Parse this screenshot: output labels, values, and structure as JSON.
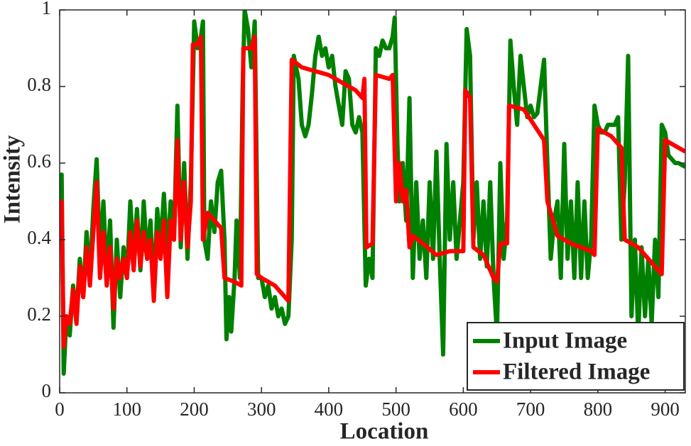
{
  "chart_data": {
    "type": "line",
    "xlabel": "Location",
    "ylabel": "Intensity",
    "xlim": [
      0,
      930
    ],
    "xticks": [
      0,
      100,
      200,
      300,
      400,
      500,
      600,
      700,
      800,
      900
    ],
    "ylim": [
      0,
      1
    ],
    "yticks": [
      0,
      0.2,
      0.4,
      0.6,
      0.8,
      1
    ],
    "legend": "lower right",
    "series": [
      {
        "name": "Input Image",
        "color": "#008000",
        "x": [
          0,
          3,
          6,
          10,
          15,
          20,
          25,
          30,
          35,
          40,
          45,
          50,
          55,
          60,
          65,
          70,
          75,
          80,
          85,
          90,
          95,
          100,
          105,
          110,
          115,
          120,
          125,
          130,
          135,
          140,
          145,
          150,
          155,
          160,
          165,
          170,
          175,
          180,
          185,
          190,
          195,
          200,
          205,
          210,
          213,
          215,
          220,
          225,
          230,
          235,
          240,
          245,
          248,
          252,
          255,
          260,
          263,
          268,
          272,
          275,
          280,
          285,
          290,
          295,
          300,
          305,
          310,
          315,
          320,
          325,
          330,
          335,
          340,
          345,
          348,
          355,
          360,
          365,
          370,
          375,
          380,
          385,
          390,
          395,
          400,
          405,
          410,
          415,
          420,
          425,
          430,
          435,
          440,
          445,
          450,
          455,
          460,
          465,
          470,
          475,
          480,
          485,
          490,
          495,
          498,
          502,
          505,
          510,
          515,
          520,
          525,
          530,
          535,
          540,
          545,
          550,
          555,
          560,
          565,
          570,
          575,
          580,
          585,
          590,
          595,
          600,
          605,
          610,
          615,
          620,
          625,
          630,
          635,
          640,
          645,
          650,
          655,
          660,
          665,
          670,
          675,
          680,
          685,
          690,
          695,
          700,
          705,
          710,
          715,
          720,
          725,
          730,
          735,
          740,
          745,
          750,
          755,
          760,
          765,
          770,
          775,
          780,
          785,
          790,
          795,
          800,
          805,
          810,
          815,
          820,
          825,
          830,
          835,
          840,
          845,
          850,
          855,
          860,
          865,
          870,
          875,
          880,
          885,
          890,
          895,
          900,
          905,
          910,
          915,
          920,
          930
        ],
        "values": [
          0.5,
          0.57,
          0.05,
          0.2,
          0.15,
          0.28,
          0.2,
          0.35,
          0.25,
          0.42,
          0.3,
          0.48,
          0.61,
          0.35,
          0.5,
          0.3,
          0.45,
          0.17,
          0.4,
          0.25,
          0.38,
          0.3,
          0.5,
          0.35,
          0.48,
          0.32,
          0.5,
          0.35,
          0.45,
          0.26,
          0.48,
          0.38,
          0.52,
          0.35,
          0.5,
          0.4,
          0.75,
          0.38,
          0.6,
          0.35,
          0.55,
          0.97,
          0.9,
          0.93,
          0.97,
          0.4,
          0.35,
          0.5,
          0.42,
          0.55,
          0.58,
          0.4,
          0.14,
          0.25,
          0.16,
          0.3,
          0.45,
          0.3,
          0.8,
          1.0,
          0.95,
          0.85,
          0.97,
          0.3,
          0.3,
          0.25,
          0.28,
          0.22,
          0.25,
          0.2,
          0.22,
          0.18,
          0.2,
          0.4,
          0.88,
          0.82,
          0.7,
          0.67,
          0.7,
          0.78,
          0.88,
          0.93,
          0.88,
          0.9,
          0.85,
          0.88,
          0.8,
          0.75,
          0.7,
          0.84,
          0.82,
          0.7,
          0.68,
          0.72,
          0.68,
          0.28,
          0.35,
          0.3,
          0.9,
          0.88,
          0.92,
          0.9,
          0.9,
          0.93,
          0.98,
          0.65,
          0.5,
          0.6,
          0.45,
          0.77,
          0.3,
          0.55,
          0.35,
          0.45,
          0.3,
          0.55,
          0.35,
          0.63,
          0.35,
          0.1,
          0.65,
          0.4,
          0.55,
          0.35,
          0.45,
          0.55,
          0.95,
          0.88,
          0.4,
          0.55,
          0.35,
          0.5,
          0.33,
          0.55,
          0.3,
          0.15,
          0.6,
          0.35,
          0.45,
          0.92,
          0.8,
          0.7,
          0.88,
          0.8,
          0.72,
          0.75,
          0.72,
          0.73,
          0.8,
          0.87,
          0.6,
          0.35,
          0.45,
          0.5,
          0.3,
          0.65,
          0.35,
          0.5,
          0.3,
          0.55,
          0.3,
          0.5,
          0.3,
          0.4,
          0.75,
          0.7,
          0.68,
          0.68,
          0.7,
          0.7,
          0.7,
          0.72,
          0.4,
          0.55,
          0.88,
          0.2,
          0.4,
          0.15,
          0.38,
          0.2,
          0.35,
          0.18,
          0.4,
          0.25,
          0.7,
          0.68,
          0.62,
          0.61,
          0.6,
          0.6,
          0.59
        ]
      },
      {
        "name": "Filtered Image",
        "color": "#ff0000",
        "x": [
          0,
          3,
          6,
          10,
          15,
          20,
          25,
          30,
          35,
          40,
          45,
          50,
          55,
          60,
          65,
          70,
          75,
          80,
          85,
          90,
          95,
          100,
          105,
          110,
          115,
          120,
          125,
          130,
          135,
          140,
          145,
          150,
          155,
          160,
          165,
          170,
          175,
          180,
          185,
          190,
          195,
          198,
          205,
          210,
          213,
          220,
          230,
          240,
          245,
          260,
          270,
          273,
          285,
          290,
          293,
          300,
          320,
          340,
          345,
          360,
          380,
          400,
          420,
          440,
          450,
          453,
          456,
          465,
          470,
          490,
          495,
          500,
          505,
          510,
          515,
          520,
          525,
          540,
          560,
          580,
          600,
          603,
          610,
          615,
          630,
          645,
          650,
          655,
          665,
          668,
          690,
          705,
          720,
          725,
          740,
          760,
          790,
          795,
          800,
          820,
          835,
          840,
          860,
          880,
          895,
          900,
          920,
          930
        ],
        "values": [
          0.45,
          0.5,
          0.12,
          0.2,
          0.18,
          0.27,
          0.18,
          0.33,
          0.25,
          0.38,
          0.28,
          0.42,
          0.55,
          0.3,
          0.42,
          0.28,
          0.38,
          0.22,
          0.35,
          0.3,
          0.35,
          0.3,
          0.42,
          0.32,
          0.45,
          0.33,
          0.42,
          0.35,
          0.4,
          0.24,
          0.42,
          0.35,
          0.45,
          0.25,
          0.45,
          0.4,
          0.66,
          0.4,
          0.55,
          0.38,
          0.5,
          0.91,
          0.91,
          0.93,
          0.4,
          0.47,
          0.45,
          0.43,
          0.3,
          0.29,
          0.28,
          0.9,
          0.9,
          0.93,
          0.31,
          0.3,
          0.28,
          0.24,
          0.87,
          0.85,
          0.84,
          0.83,
          0.81,
          0.79,
          0.77,
          0.82,
          0.38,
          0.39,
          0.83,
          0.82,
          0.83,
          0.5,
          0.6,
          0.5,
          0.53,
          0.38,
          0.41,
          0.39,
          0.36,
          0.37,
          0.37,
          0.79,
          0.77,
          0.38,
          0.36,
          0.3,
          0.29,
          0.39,
          0.39,
          0.75,
          0.74,
          0.7,
          0.66,
          0.5,
          0.41,
          0.39,
          0.37,
          0.36,
          0.69,
          0.67,
          0.64,
          0.4,
          0.38,
          0.34,
          0.31,
          0.66,
          0.64,
          0.63
        ]
      }
    ]
  }
}
